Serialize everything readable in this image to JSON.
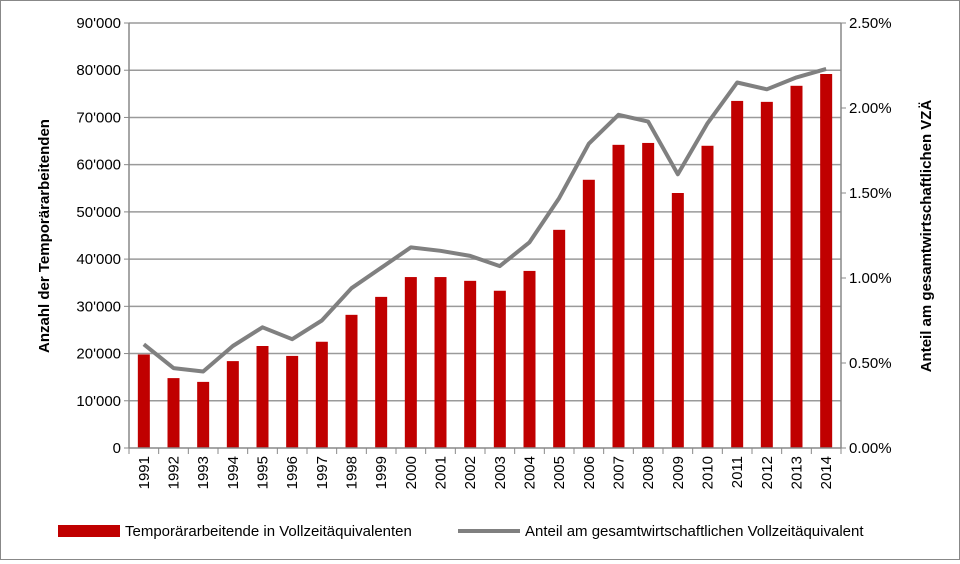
{
  "chart_data": {
    "type": "bar",
    "categories": [
      "1991",
      "1992",
      "1993",
      "1994",
      "1995",
      "1996",
      "1997",
      "1998",
      "1999",
      "2000",
      "2001",
      "2002",
      "2003",
      "2004",
      "2005",
      "2006",
      "2007",
      "2008",
      "2009",
      "2010",
      "2011",
      "2012",
      "2013",
      "2014"
    ],
    "series": [
      {
        "name": "Temporärarbeitende in Vollzeitäquivalenten",
        "type": "bar",
        "axis": "left",
        "color": "#c00000",
        "values": [
          19800,
          14800,
          14000,
          18400,
          21600,
          19500,
          22500,
          28200,
          32000,
          36200,
          36200,
          35400,
          33300,
          37500,
          46200,
          56800,
          64200,
          64600,
          54000,
          64000,
          73500,
          73300,
          76700,
          79200
        ]
      },
      {
        "name": "Anteil am gesamtwirtschaftlichen Vollzeitäquivalent",
        "type": "line",
        "axis": "right",
        "color": "#808080",
        "values": [
          0.61,
          0.47,
          0.45,
          0.6,
          0.71,
          0.64,
          0.75,
          0.94,
          1.06,
          1.18,
          1.16,
          1.13,
          1.07,
          1.21,
          1.47,
          1.79,
          1.96,
          1.92,
          1.61,
          1.91,
          2.15,
          2.11,
          2.18,
          2.23
        ]
      }
    ],
    "ylabel": "Anzahl der Temporärarbeitenden",
    "y2label": "Anteil am gesamtwirtschaftlichen VZÄ",
    "ylim": [
      0,
      90000
    ],
    "y2lim": [
      0,
      2.5
    ],
    "yticks": [
      "0",
      "10'000",
      "20'000",
      "30'000",
      "40'000",
      "50'000",
      "60'000",
      "70'000",
      "80'000",
      "90'000"
    ],
    "y2ticks": [
      "0.00%",
      "0.50%",
      "1.00%",
      "1.50%",
      "2.00%",
      "2.50%"
    ],
    "grid": true,
    "legend": "bottom"
  }
}
